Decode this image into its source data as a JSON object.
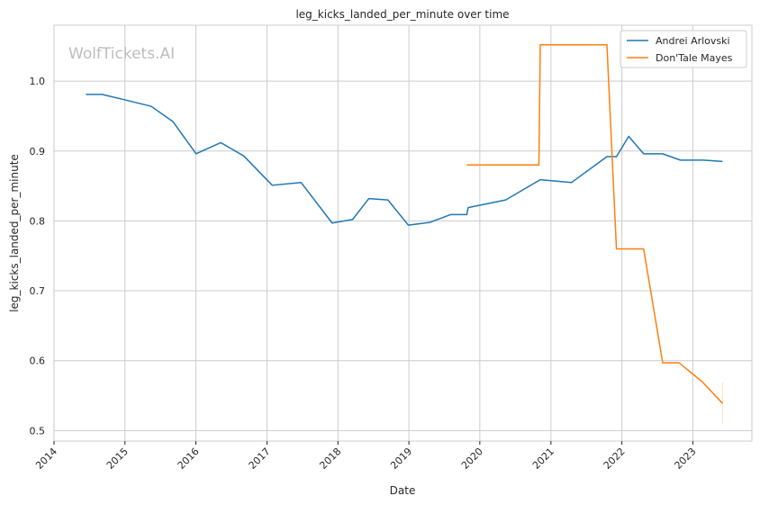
{
  "watermark": "WolfTickets.AI",
  "chart_data": {
    "type": "line",
    "title": "leg_kicks_landed_per_minute over time",
    "xlabel": "Date",
    "ylabel": "leg_kicks_landed_per_minute",
    "x_type": "date",
    "xlim": [
      "2014-01-01",
      "2023-11-01"
    ],
    "ylim": [
      0.485,
      1.08
    ],
    "x_ticks": [
      "2014",
      "2015",
      "2016",
      "2017",
      "2018",
      "2019",
      "2020",
      "2021",
      "2022",
      "2023"
    ],
    "y_ticks": [
      "0.5",
      "0.6",
      "0.7",
      "0.8",
      "0.9",
      "1.0"
    ],
    "grid": true,
    "legend_position": "top-right",
    "series": [
      {
        "name": "Andrei Arlovski",
        "color": "#1f77b4",
        "step": false,
        "points": [
          [
            "2014-06-14",
            0.981
          ],
          [
            "2014-09-05",
            0.981
          ],
          [
            "2015-01-03",
            0.973
          ],
          [
            "2015-05-16",
            0.964
          ],
          [
            "2015-09-05",
            0.942
          ],
          [
            "2016-01-02",
            0.896
          ],
          [
            "2016-05-08",
            0.912
          ],
          [
            "2016-09-03",
            0.893
          ],
          [
            "2017-01-28",
            0.851
          ],
          [
            "2017-06-25",
            0.855
          ],
          [
            "2017-12-02",
            0.797
          ],
          [
            "2018-03-17",
            0.802
          ],
          [
            "2018-06-09",
            0.832
          ],
          [
            "2018-09-15",
            0.83
          ],
          [
            "2018-12-29",
            0.794
          ],
          [
            "2019-04-20",
            0.798
          ],
          [
            "2019-08-03",
            0.809
          ],
          [
            "2019-10-26",
            0.809
          ],
          [
            "2019-11-02",
            0.819
          ],
          [
            "2020-05-13",
            0.83
          ],
          [
            "2020-11-07",
            0.859
          ],
          [
            "2021-04-17",
            0.855
          ],
          [
            "2021-10-16",
            0.892
          ],
          [
            "2021-12-04",
            0.892
          ],
          [
            "2022-02-05",
            0.921
          ],
          [
            "2022-04-23",
            0.896
          ],
          [
            "2022-07-30",
            0.896
          ],
          [
            "2022-10-29",
            0.887
          ],
          [
            "2023-02-25",
            0.887
          ],
          [
            "2023-06-03",
            0.885
          ]
        ]
      },
      {
        "name": "Don'Tale Mayes",
        "color": "#ff7f0e",
        "step": true,
        "points": [
          [
            "2019-10-26",
            0.88
          ],
          [
            "2020-10-31",
            0.88
          ],
          [
            "2020-11-07",
            1.052
          ],
          [
            "2021-10-16",
            1.052
          ],
          [
            "2021-12-04",
            0.76
          ],
          [
            "2022-04-23",
            0.76
          ],
          [
            "2022-07-30",
            0.597
          ],
          [
            "2022-10-22",
            0.597
          ],
          [
            "2023-02-18",
            0.57
          ],
          [
            "2023-06-03",
            0.539
          ]
        ]
      }
    ]
  }
}
